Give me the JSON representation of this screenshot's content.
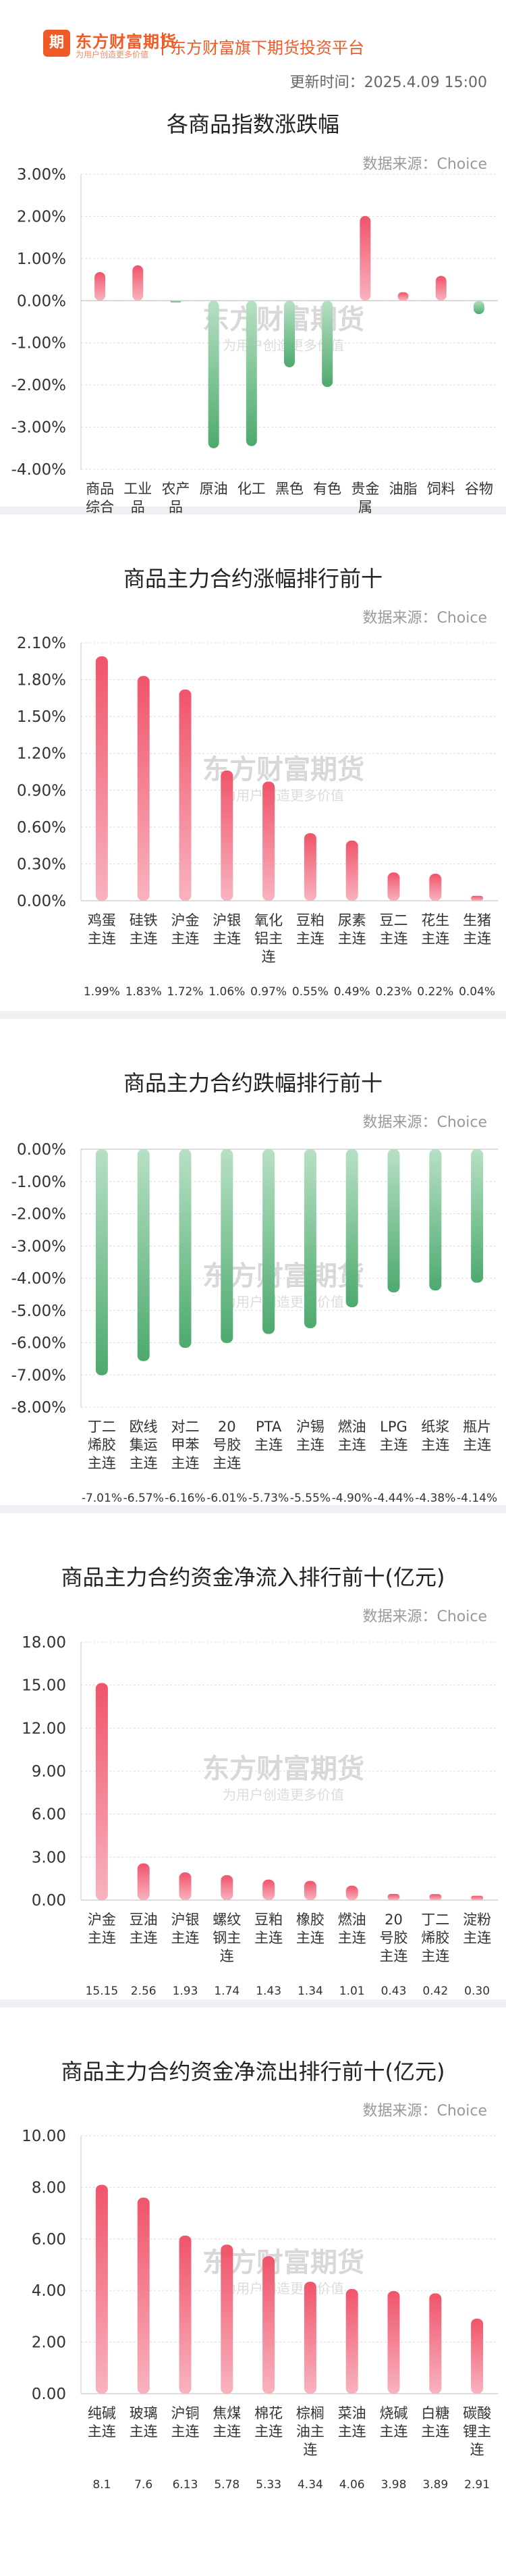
{
  "header": {
    "logo_mark": "期货",
    "logo_name": "东方财富期货",
    "logo_sub": "为用户创造更多价值",
    "slogan": "东方财富旗下期货投资平台",
    "updated": "更新时间：2025.4.09 15:00"
  },
  "source_label": "数据来源：Choice",
  "watermark": {
    "name": "东方财富期货",
    "sub": "为用户创造更多价值"
  },
  "colors": {
    "up": "#f0546a",
    "down": "#4daa6e",
    "brand": "#ef5a26"
  },
  "chart_data": [
    {
      "type": "bar",
      "title": "各商品指数涨跌幅",
      "categories": [
        "商品综合",
        "工业品",
        "农产品",
        "原油",
        "化工",
        "黑色",
        "有色",
        "贵金属",
        "油脂",
        "饲料",
        "谷物"
      ],
      "values": [
        0.68,
        0.84,
        -0.04,
        -3.5,
        -3.45,
        -1.58,
        -2.05,
        2.01,
        0.2,
        0.59,
        -0.32
      ],
      "value_labels": [
        "0.68%",
        "0.84%",
        "-0.04%",
        "-3.50%",
        "-3.45%",
        "-1.58%",
        "-2.05%",
        "2.01%",
        "0.20%",
        "0.59%",
        "-0.32%"
      ],
      "yticks": [
        "3.00%",
        "2.00%",
        "1.00%",
        "0.00%",
        "-1.00%",
        "-2.00%",
        "-3.00%",
        "-4.00%"
      ],
      "ylim": [
        -4,
        3
      ],
      "grid": true
    },
    {
      "type": "bar",
      "title": "商品主力合约涨幅排行前十",
      "categories": [
        "鸡蛋主连",
        "硅铁主连",
        "沪金主连",
        "沪银主连",
        "氧化铝主连",
        "豆粕主连",
        "尿素主连",
        "豆二主连",
        "花生主连",
        "生猪主连"
      ],
      "values": [
        1.99,
        1.83,
        1.72,
        1.06,
        0.97,
        0.55,
        0.49,
        0.23,
        0.22,
        0.04
      ],
      "value_labels": [
        "1.99%",
        "1.83%",
        "1.72%",
        "1.06%",
        "0.97%",
        "0.55%",
        "0.49%",
        "0.23%",
        "0.22%",
        "0.04%"
      ],
      "yticks": [
        "2.10%",
        "1.80%",
        "1.50%",
        "1.20%",
        "0.90%",
        "0.60%",
        "0.30%",
        "0.00%"
      ],
      "ylim": [
        0,
        2.1
      ],
      "grid": true
    },
    {
      "type": "bar",
      "title": "商品主力合约跌幅排行前十",
      "categories": [
        "丁二烯胶主连",
        "欧线集运主连",
        "对二甲苯主连",
        "20号胶主连",
        "PTA主连",
        "沪锡主连",
        "燃油主连",
        "LPG主连",
        "纸浆主连",
        "瓶片主连"
      ],
      "values": [
        -7.01,
        -6.57,
        -6.16,
        -6.01,
        -5.73,
        -5.55,
        -4.9,
        -4.44,
        -4.38,
        -4.14
      ],
      "value_labels": [
        "-7.01%",
        "-6.57%",
        "-6.16%",
        "-6.01%",
        "-5.73%",
        "-5.55%",
        "-4.90%",
        "-4.44%",
        "-4.38%",
        "-4.14%"
      ],
      "yticks": [
        "0.00%",
        "-1.00%",
        "-2.00%",
        "-3.00%",
        "-4.00%",
        "-5.00%",
        "-6.00%",
        "-7.00%",
        "-8.00%"
      ],
      "ylim": [
        -8,
        0
      ],
      "grid": true
    },
    {
      "type": "bar",
      "title": "商品主力合约资金净流入排行前十(亿元)",
      "categories": [
        "沪金主连",
        "豆油主连",
        "沪银主连",
        "螺纹钢主连",
        "豆粕主连",
        "橡胶主连",
        "燃油主连",
        "20号胶主连",
        "丁二烯胶主连",
        "淀粉主连"
      ],
      "values": [
        15.15,
        2.56,
        1.93,
        1.74,
        1.43,
        1.34,
        1.01,
        0.43,
        0.42,
        0.3
      ],
      "value_labels": [
        "15.15",
        "2.56",
        "1.93",
        "1.74",
        "1.43",
        "1.34",
        "1.01",
        "0.43",
        "0.42",
        "0.30"
      ],
      "yticks": [
        "18.00",
        "15.00",
        "12.00",
        "9.00",
        "6.00",
        "3.00",
        "0.00"
      ],
      "ylim": [
        0,
        18
      ],
      "grid": true
    },
    {
      "type": "bar",
      "title": "商品主力合约资金净流出排行前十(亿元)",
      "categories": [
        "纯碱主连",
        "玻璃主连",
        "沪铜主连",
        "焦煤主连",
        "棉花主连",
        "棕榈油主连",
        "菜油主连",
        "烧碱主连",
        "白糖主连",
        "碳酸锂主连"
      ],
      "values": [
        8.1,
        7.6,
        6.13,
        5.78,
        5.33,
        4.34,
        4.06,
        3.98,
        3.89,
        2.91
      ],
      "value_labels": [
        "8.1",
        "7.6",
        "6.13",
        "5.78",
        "5.33",
        "4.34",
        "4.06",
        "3.98",
        "3.89",
        "2.91"
      ],
      "yticks": [
        "10.00",
        "8.00",
        "6.00",
        "4.00",
        "2.00",
        "0.00"
      ],
      "ylim": [
        0,
        10
      ],
      "grid": true
    }
  ]
}
